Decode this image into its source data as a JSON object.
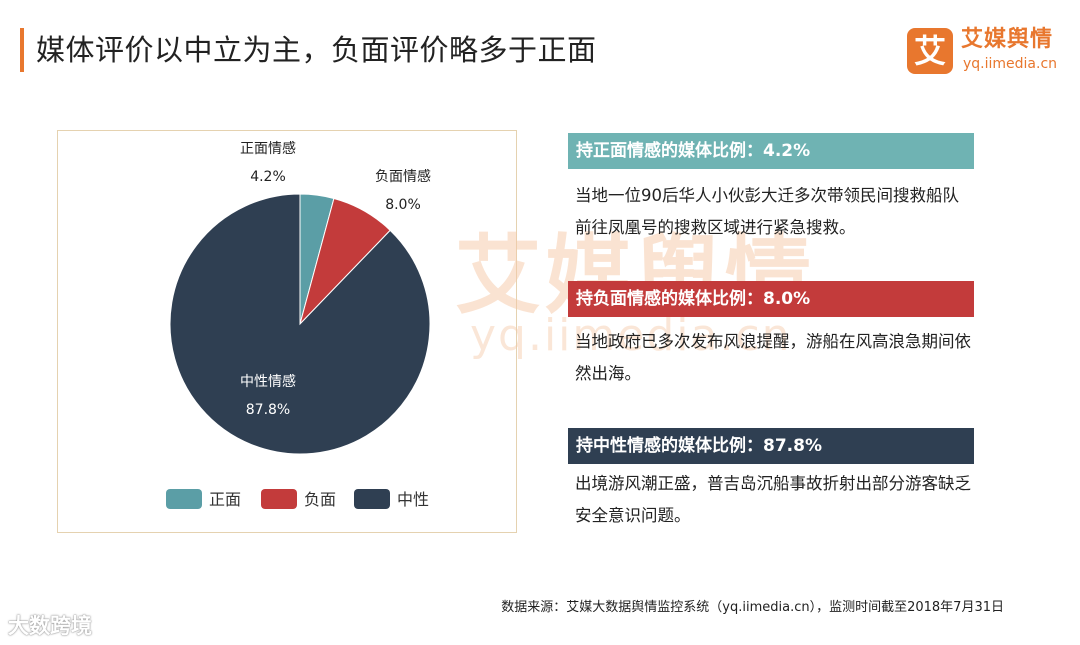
{
  "header": {
    "title": "媒体评价以中立为主，负面评价略多于正面"
  },
  "logo": {
    "mark": "艾",
    "name": "艾媒舆情",
    "url": "yq.iimedia.cn"
  },
  "colors": {
    "accent": "#e8772e",
    "positive": "#5b9ea6",
    "negative": "#c33b3b",
    "neutral": "#2f3f52"
  },
  "chart_data": {
    "type": "pie",
    "slices": [
      {
        "label": "正面情感",
        "legend": "正面",
        "value": 4.2,
        "value_label": "4.2%"
      },
      {
        "label": "负面情感",
        "legend": "负面",
        "value": 8.0,
        "value_label": "8.0%"
      },
      {
        "label": "中性情感",
        "legend": "中性",
        "value": 87.8,
        "value_label": "87.8%"
      }
    ],
    "legend_position": "bottom"
  },
  "panels": {
    "positive": {
      "heading": "持正面情感的媒体比例：4.2%",
      "text": "当地一位90后华人小伙彭大迁多次带领民间搜救船队前往凤凰号的搜救区域进行紧急搜救。"
    },
    "negative": {
      "heading": "持负面情感的媒体比例：8.0%",
      "text": "当地政府已多次发布风浪提醒，游船在风高浪急期间依然出海。"
    },
    "neutral": {
      "heading": "持中性情感的媒体比例：87.8%",
      "text": "出境游风潮正盛，普吉岛沉船事故折射出部分游客缺乏安全意识问题。"
    }
  },
  "watermark": {
    "name": "艾媒舆情",
    "url": "yq.iimedia.cn"
  },
  "footer": {
    "source": "数据来源：艾媒大数据舆情监控系统（yq.iimedia.cn），监测时间截至2018年7月31日",
    "badge": "大数跨境"
  }
}
